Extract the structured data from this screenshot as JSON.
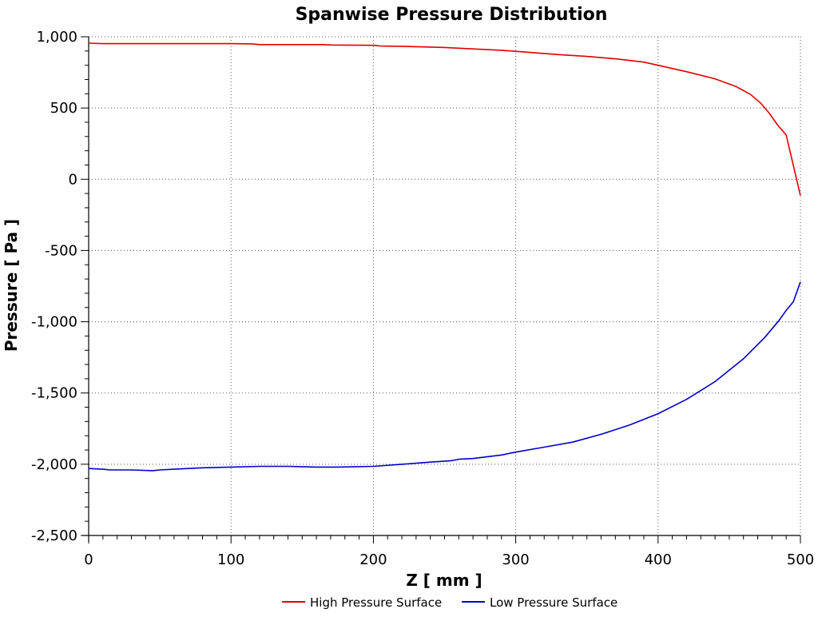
{
  "chart_data": {
    "type": "line",
    "title": "Spanwise Pressure Distribution",
    "xlabel": "Z [ mm ]",
    "ylabel": "Pressure [ Pa ]",
    "xlim": [
      0,
      500
    ],
    "ylim": [
      -2500,
      1000
    ],
    "x_ticks": [
      0,
      100,
      200,
      300,
      400,
      500
    ],
    "x_tick_labels": [
      "0",
      "100",
      "200",
      "300",
      "400",
      "500"
    ],
    "y_ticks": [
      1000,
      500,
      0,
      -500,
      -1000,
      -1500,
      -2000,
      -2500
    ],
    "y_tick_labels": [
      "1,000",
      "500",
      "0",
      "-500",
      "-1,000",
      "-1,500",
      "-2,000",
      "-2,500"
    ],
    "grid": true,
    "legend_position": "bottom",
    "series": [
      {
        "name": "High Pressure Surface",
        "color": "#e00000",
        "x": [
          0,
          10,
          50,
          100,
          115,
          120,
          165,
          170,
          200,
          205,
          220,
          250,
          270,
          290,
          310,
          330,
          350,
          370,
          390,
          400,
          420,
          440,
          455,
          465,
          472,
          478,
          484,
          490,
          500
        ],
        "y": [
          955,
          952,
          952,
          952,
          950,
          945,
          945,
          942,
          940,
          935,
          933,
          925,
          915,
          905,
          890,
          875,
          862,
          845,
          822,
          800,
          755,
          705,
          650,
          595,
          535,
          465,
          380,
          310,
          -115
        ]
      },
      {
        "name": "Low Pressure Surface",
        "color": "#0000cc",
        "x": [
          0,
          10,
          15,
          30,
          45,
          50,
          60,
          70,
          80,
          100,
          120,
          140,
          160,
          175,
          200,
          220,
          240,
          255,
          260,
          270,
          290,
          300,
          320,
          340,
          360,
          380,
          400,
          420,
          440,
          460,
          475,
          485,
          490,
          495,
          500
        ],
        "y": [
          -2030,
          -2035,
          -2040,
          -2040,
          -2045,
          -2040,
          -2035,
          -2030,
          -2025,
          -2020,
          -2015,
          -2015,
          -2020,
          -2020,
          -2015,
          -2000,
          -1985,
          -1975,
          -1965,
          -1960,
          -1935,
          -1915,
          -1880,
          -1845,
          -1790,
          -1725,
          -1645,
          -1545,
          -1420,
          -1260,
          -1110,
          -990,
          -920,
          -860,
          -720
        ]
      }
    ]
  }
}
